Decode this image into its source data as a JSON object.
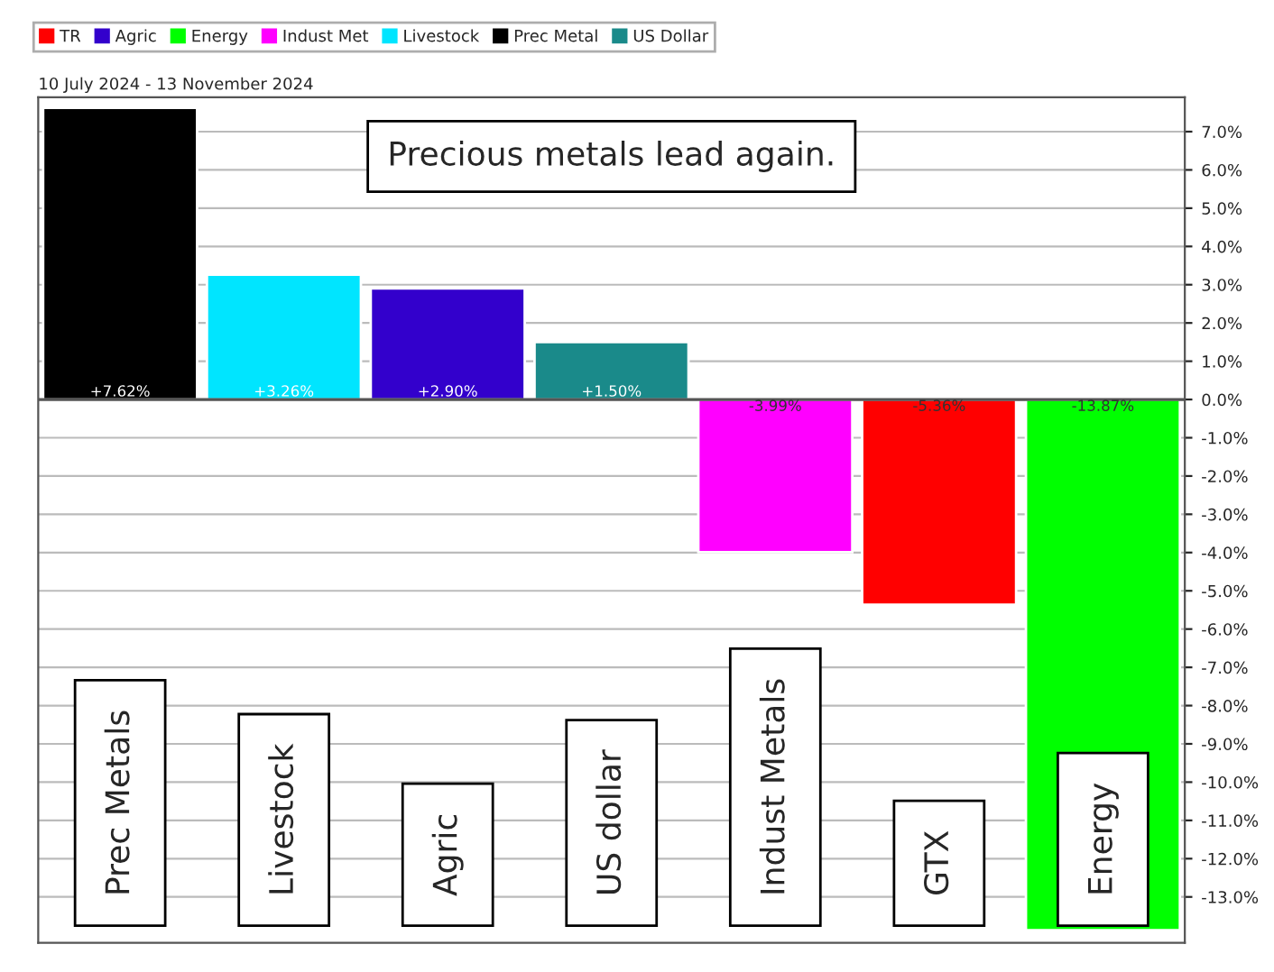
{
  "chart_data": {
    "type": "bar",
    "title": "Precious metals lead again.",
    "subtitle": "10 July 2024 - 13 November 2024",
    "categories": [
      "Prec Metals",
      "Livestock",
      "Agric",
      "US dollar",
      "Indust Metals",
      "GTX",
      "Energy"
    ],
    "series": [
      {
        "name": "TR",
        "color": "#ff0000",
        "values": [
          null,
          null,
          null,
          null,
          null,
          -5.36,
          null
        ],
        "value_labels": [
          null,
          null,
          null,
          null,
          null,
          "-5.36%",
          null
        ]
      },
      {
        "name": "Agric",
        "color": "#3300cc",
        "values": [
          null,
          null,
          2.9,
          null,
          null,
          null,
          null
        ],
        "value_labels": [
          null,
          null,
          "+2.90%",
          null,
          null,
          null,
          null
        ]
      },
      {
        "name": "Energy",
        "color": "#00ff00",
        "values": [
          null,
          null,
          null,
          null,
          null,
          null,
          -13.87
        ],
        "value_labels": [
          null,
          null,
          null,
          null,
          null,
          null,
          "-13.87%"
        ]
      },
      {
        "name": "Indust Met",
        "color": "#ff00ff",
        "values": [
          null,
          null,
          null,
          null,
          -3.99,
          null,
          null
        ],
        "value_labels": [
          null,
          null,
          null,
          null,
          "-3.99%",
          null,
          null
        ]
      },
      {
        "name": "Livestock",
        "color": "#00e5ff",
        "values": [
          null,
          3.26,
          null,
          null,
          null,
          null,
          null
        ],
        "value_labels": [
          null,
          "+3.26%",
          null,
          null,
          null,
          null,
          null
        ]
      },
      {
        "name": "Prec Metal",
        "color": "#000000",
        "values": [
          7.62,
          null,
          null,
          null,
          null,
          null,
          null
        ],
        "value_labels": [
          "+7.62%",
          null,
          null,
          null,
          null,
          null,
          null
        ]
      },
      {
        "name": "US Dollar",
        "color": "#1a8a8a",
        "values": [
          null,
          null,
          null,
          1.5,
          null,
          null,
          null
        ],
        "value_labels": [
          null,
          null,
          null,
          "+1.50%",
          null,
          null,
          null
        ]
      }
    ],
    "ylim": [
      -14.2,
      7.9
    ],
    "yticks": [
      {
        "value": 7,
        "label": "7.0%"
      },
      {
        "value": 6,
        "label": "6.0%"
      },
      {
        "value": 5,
        "label": "5.0%"
      },
      {
        "value": 4,
        "label": "4.0%"
      },
      {
        "value": 3,
        "label": "3.0%"
      },
      {
        "value": 2,
        "label": "2.0%"
      },
      {
        "value": 1,
        "label": "1.0%"
      },
      {
        "value": 0,
        "label": "0.0%"
      },
      {
        "value": -1,
        "label": "-1.0%"
      },
      {
        "value": -2,
        "label": "-2.0%"
      },
      {
        "value": -3,
        "label": "-3.0%"
      },
      {
        "value": -4,
        "label": "-4.0%"
      },
      {
        "value": -5,
        "label": "-5.0%"
      },
      {
        "value": -6,
        "label": "-6.0%"
      },
      {
        "value": -7,
        "label": "-7.0%"
      },
      {
        "value": -8,
        "label": "-8.0%"
      },
      {
        "value": -9,
        "label": "-9.0%"
      },
      {
        "value": -10,
        "label": "-10.0%"
      },
      {
        "value": -11,
        "label": "-11.0%"
      },
      {
        "value": -12,
        "label": "-12.0%"
      },
      {
        "value": -13,
        "label": "-13.0%"
      }
    ],
    "grid": "y",
    "legend": "top",
    "tick_labels": "y"
  }
}
